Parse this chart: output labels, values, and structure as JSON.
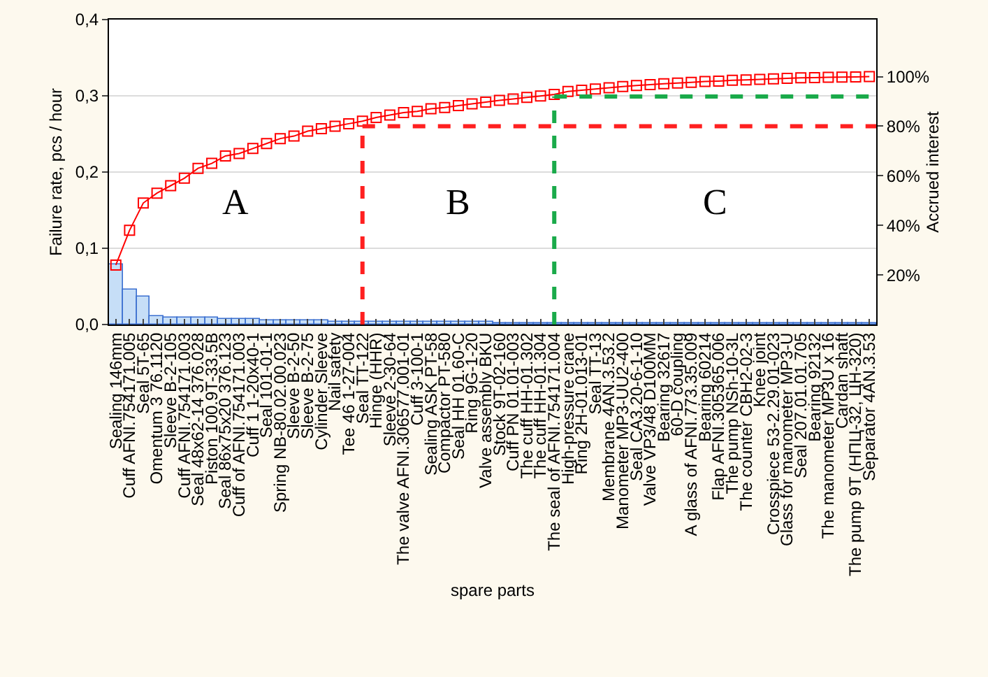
{
  "chart_data": {
    "type": "bar",
    "xlabel": "spare parts",
    "ylabel": "Failure rate, pcs / hour",
    "y2label": "Accrued interest",
    "categories": [
      "Sealing 146mm",
      "Cuff AFNI.754171.005",
      "Seal 5T-65",
      "Omentum 3 76.1120",
      "Sleeve B-2-105",
      "Cuff AFNI.754171.003",
      "Seal 48x62-14 376.028",
      "Piston 100.9T-33.5B",
      "Seal 86x75x20 376.123",
      "Cuff of AFNI.754171.003",
      "Cuff 1 1-20x40-1",
      "Seal 101-01-1",
      "Spring NB-80.02.00.023",
      "Sleeve B-2-50",
      "Sleeve B-2-75",
      "Cylinder Sleeve",
      "Nail safety",
      "Tee 46 1-27-004",
      "Seal TT-122",
      "Hinge (HHR)",
      "Sleeve 2-30-64",
      "The valve AFNI.306577.001-01",
      "Cuff 3-100-1",
      "Sealing ASK PT-58",
      "Compactor PT-580",
      "Seal HH 01.60-C",
      "Ring 9G-1-20",
      "Valve assembly BKU",
      "Stock 9T-02-160",
      "Cuff PN 01.01-003",
      "The cuff HH-01.302",
      "The cuff HH-01.304",
      "The seal of AFNI.754171.004",
      "High-pressure crane",
      "Ring 2H-01.013-01",
      "Seal TT-13",
      "Membrane 4AN.3.53.2",
      "Manometer MP3-UU2-400",
      "Seal CA3.20-6-1-10",
      "Valve VP3/48 D100MM",
      "Bearing 32617",
      "60-D coupling",
      "A glass of AFNI.773.35.009",
      "Bearing 60214",
      "Flap AFNI.305365.006",
      "The pump NSh-10-3L",
      "The counter CBH2-02-3",
      "Knee joint",
      "Crosspiece 53-2.29.01-023",
      "Glass for manometer MP3-U",
      "Seal 207.01.01.705",
      "Bearing 92132",
      "The manometer MP3U x 16",
      "Cardan shaft",
      "The pump 9T (НПЦ-32, ЦН-320)",
      "Separator 4AN.3.53"
    ],
    "series": [
      {
        "color": "#c6def7",
        "values": [
          0.078,
          0.045,
          0.037,
          0.011,
          0.01,
          0.01,
          0.009,
          0.009,
          0.008,
          0.007,
          0.007,
          0.006,
          0.006,
          0.005,
          0.005,
          0.005,
          0.004,
          0.004,
          0.004,
          0.004,
          0.004,
          0.003,
          0.003,
          0.003,
          0.003,
          0.003,
          0.003,
          0.003,
          0.002,
          0.002,
          0.002,
          0.002,
          0.002,
          0.002,
          0.001,
          0.001,
          0.001,
          0.001,
          0.001,
          0.001,
          0.001,
          0.001,
          0.001,
          0.001,
          0.001,
          0.001,
          0.001,
          0.001,
          0.001,
          0.001,
          0.001,
          0.001,
          0.001,
          0.001,
          0.001,
          0.001
        ]
      },
      {
        "type": "line",
        "axis": "y2",
        "color": "#ff0000",
        "marker": "square",
        "values": [
          24,
          38,
          49,
          53,
          56,
          59,
          63,
          65,
          68,
          69,
          71,
          73,
          75,
          76,
          78,
          79,
          80,
          81,
          82,
          83.5,
          84.5,
          85.5,
          86,
          87,
          87.5,
          88.3,
          89,
          89.7,
          90.4,
          91,
          91.6,
          92.2,
          92.8,
          94,
          94.5,
          95,
          95.5,
          96,
          96.4,
          96.8,
          97.1,
          97.4,
          97.7,
          98,
          98.2,
          98.5,
          98.7,
          98.9,
          99.1,
          99.3,
          99.5,
          99.6,
          99.7,
          99.8,
          99.9,
          100
        ]
      }
    ],
    "ylim": [
      0,
      0.4
    ],
    "yticks": [
      {
        "value": 0,
        "label": "0,0"
      },
      {
        "value": 0.1,
        "label": "0,1"
      },
      {
        "value": 0.2,
        "label": "0,2"
      },
      {
        "value": 0.3,
        "label": "0,3"
      },
      {
        "value": 0.4,
        "label": "0,4"
      }
    ],
    "y2lim": [
      0,
      123
    ],
    "y2ticks": [
      {
        "value": 20,
        "label": "20%"
      },
      {
        "value": 40,
        "label": "40%"
      },
      {
        "value": 60,
        "label": "60%"
      },
      {
        "value": 80,
        "label": "80%"
      },
      {
        "value": 100,
        "label": "100%"
      }
    ],
    "grid": "y",
    "ref_lines": [
      {
        "axis": "x",
        "value": "Seal TT-122",
        "color": "#ff2020",
        "line_style": "dashed"
      },
      {
        "axis": "y2",
        "value": 80,
        "color": "#ff2020",
        "line_style": "dashed"
      },
      {
        "axis": "x",
        "value": "The seal of AFNI.754171.004",
        "color": "#1aaa4a",
        "line_style": "dashed"
      },
      {
        "axis": "y2",
        "value": 92,
        "color": "#1aaa4a",
        "line_style": "dashed"
      }
    ],
    "annotations": [
      "A",
      "B",
      "C"
    ]
  }
}
